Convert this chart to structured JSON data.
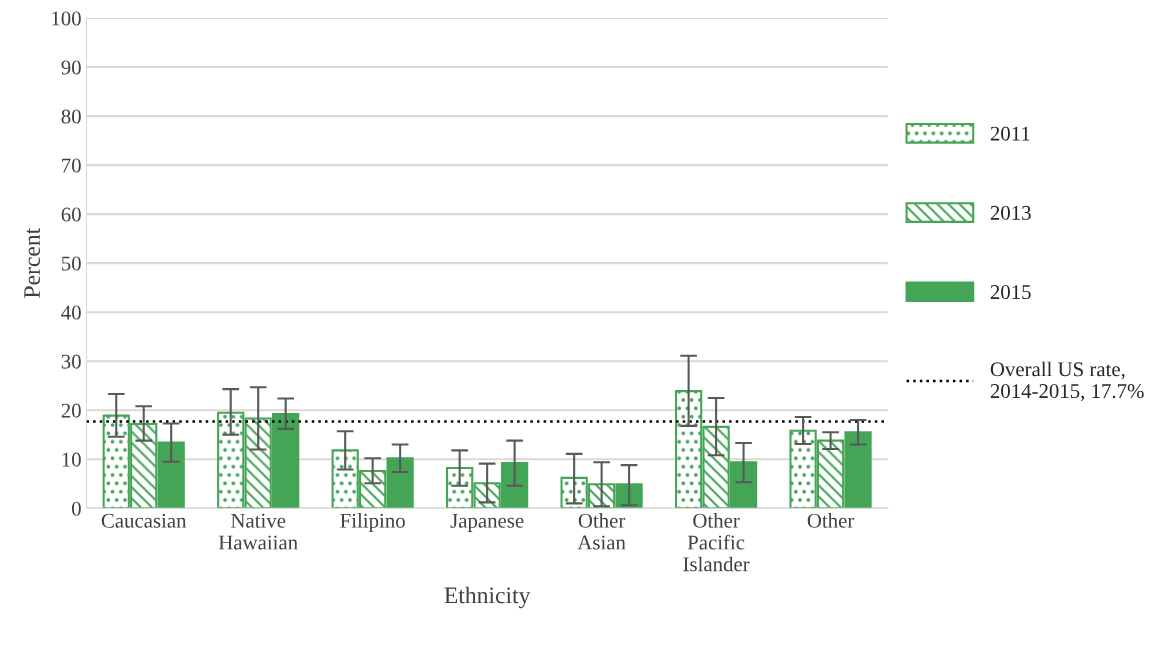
{
  "chart_data": {
    "type": "bar",
    "xlabel": "Ethnicity",
    "ylabel": "Percent",
    "categories": [
      "Caucasian",
      "Native\nHawaiian",
      "Filipino",
      "Japanese",
      "Other\nAsian",
      "Other\nPacific\nIslander",
      "Other"
    ],
    "series": [
      {
        "name": "2011",
        "color": "#45a557",
        "values": [
          18.9,
          19.5,
          11.8,
          8.2,
          6.2,
          23.9,
          15.8
        ],
        "errors": [
          [
            14.6,
            23.3
          ],
          [
            15.0,
            24.3
          ],
          [
            7.9,
            15.7
          ],
          [
            4.6,
            11.8
          ],
          [
            1.0,
            11.1
          ],
          [
            16.8,
            31.1
          ],
          [
            13.1,
            18.6
          ]
        ]
      },
      {
        "name": "2013",
        "color": "#45a557",
        "values": [
          17.2,
          18.3,
          7.6,
          5.1,
          4.9,
          16.6,
          13.8
        ],
        "errors": [
          [
            13.8,
            20.8
          ],
          [
            12.0,
            24.7
          ],
          [
            5.1,
            10.2
          ],
          [
            1.2,
            9.1
          ],
          [
            0.4,
            9.4
          ],
          [
            10.8,
            22.5
          ],
          [
            12.1,
            15.5
          ]
        ]
      },
      {
        "name": "2015",
        "color": "#45a557",
        "values": [
          13.4,
          19.2,
          10.2,
          9.2,
          4.9,
          9.4,
          15.5
        ],
        "errors": [
          [
            9.5,
            17.3
          ],
          [
            16.2,
            22.4
          ],
          [
            7.4,
            13.0
          ],
          [
            4.6,
            13.8
          ],
          [
            0.6,
            8.8
          ],
          [
            5.3,
            13.3
          ],
          [
            13.0,
            18.0
          ]
        ]
      }
    ],
    "ylim": [
      0,
      100
    ],
    "yticks": [
      0,
      10,
      20,
      30,
      40,
      50,
      60,
      70,
      80,
      90,
      100
    ],
    "grid": "y",
    "legend": "right",
    "ref_lines": [
      {
        "axis": "y",
        "value": 17.7,
        "label": "Overall US rate,\n2014-2015, 17.7%",
        "color": "#000000",
        "line_style": "dotted"
      }
    ]
  }
}
